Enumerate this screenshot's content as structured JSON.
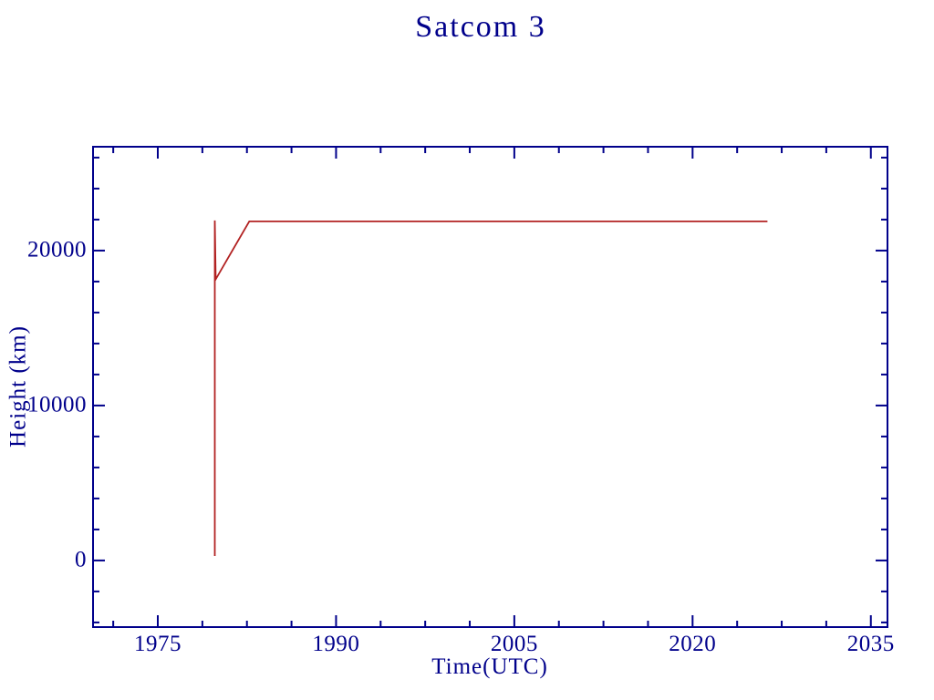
{
  "figure": {
    "background": "#ffffff"
  },
  "chart_data": {
    "type": "line",
    "title": "Satcom 3",
    "xlabel": "Time(UTC)",
    "ylabel": "Height (km)",
    "xlim": [
      1969.55,
      2036.4
    ],
    "ylim": [
      -4300,
      26700
    ],
    "x_major_ticks": [
      1975,
      1990,
      2005,
      2020,
      2035
    ],
    "x_minor_interval": 3.75,
    "x_minor_anchor": 1975,
    "y_major_ticks": [
      0,
      10000,
      20000
    ],
    "y_minor_interval": 2000,
    "y_minor_anchor": 0,
    "grid": false,
    "legend": "none",
    "axis_color": "#00008b",
    "tick_style": "inward-all-four-sides",
    "series": [
      {
        "name": "satcom-3-height",
        "color": "#b22222",
        "points": [
          [
            1979.8,
            290
          ],
          [
            1979.8,
            21940
          ],
          [
            1979.87,
            18150
          ],
          [
            1982.7,
            21880
          ],
          [
            2026.3,
            21880
          ]
        ]
      }
    ]
  }
}
